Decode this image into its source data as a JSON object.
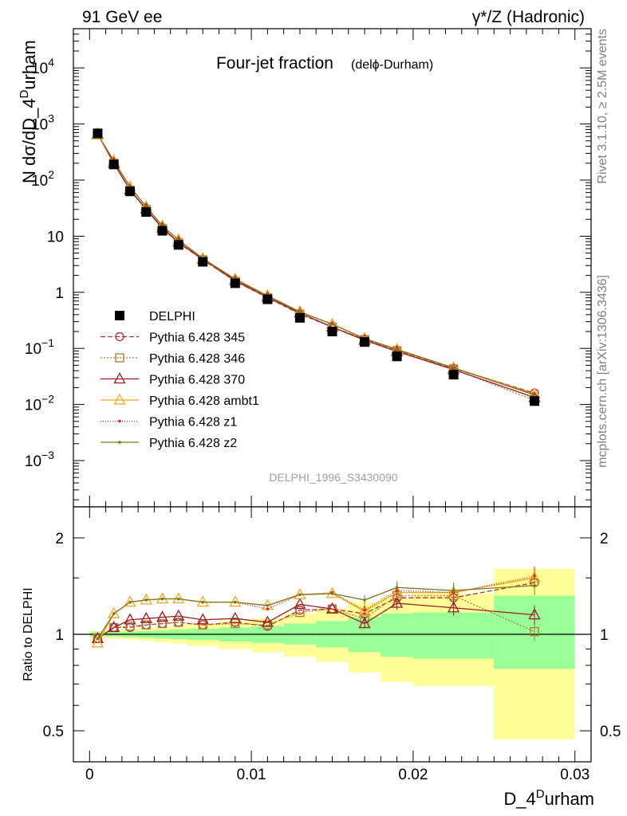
{
  "header": {
    "left": "91 GeV ee",
    "right": "γ*/Z (Hadronic)"
  },
  "side_labels": {
    "rivet": "Rivet 3.1.10, ≥ 2.5M events",
    "mcplots": "mcplots.cern.ch [arXiv:1306.3436]"
  },
  "chart_data": [
    {
      "type": "line",
      "panel": "main",
      "title": "Four-jet fraction",
      "title_sub": "(delϕ-Durham)",
      "watermark": "DELPHI_1996_S3430090",
      "xlabel": "D_4",
      "xlabel_sup": "D",
      "xlabel_rest": "urham",
      "ylabel": "N dσ/dD_4",
      "ylabel_sup": "D",
      "ylabel_rest": "urham",
      "y_scale": "log",
      "xlim": [
        -0.001,
        0.031
      ],
      "ylim": [
        0.00015,
        50000
      ],
      "y_ticks": [
        {
          "value": 10000,
          "base": "10",
          "exp": "4"
        },
        {
          "value": 1000,
          "base": "10",
          "exp": "3"
        },
        {
          "value": 100,
          "base": "10",
          "exp": "2"
        },
        {
          "value": 10,
          "base": "10",
          "exp": ""
        },
        {
          "value": 1,
          "base": "1",
          "exp": ""
        },
        {
          "value": 0.1,
          "base": "10",
          "exp": "−1"
        },
        {
          "value": 0.01,
          "base": "10",
          "exp": "−2"
        },
        {
          "value": 0.001,
          "base": "10",
          "exp": "−3"
        }
      ],
      "x": [
        0.0005,
        0.0015,
        0.0025,
        0.0035,
        0.0045,
        0.0055,
        0.007,
        0.009,
        0.011,
        0.013,
        0.015,
        0.017,
        0.019,
        0.0225,
        0.0275
      ],
      "series": [
        {
          "name": "DELPHI",
          "color": "#000000",
          "marker": "square",
          "dash": "none",
          "values": [
            680,
            190,
            63,
            27,
            12.5,
            7,
            3.5,
            1.45,
            0.75,
            0.35,
            0.2,
            0.13,
            0.072,
            0.034,
            0.0115
          ]
        },
        {
          "name": "Pythia 6.428 345",
          "color": "#b83030",
          "marker": "circle",
          "dash": "6,3",
          "values": [
            660,
            200,
            66,
            30,
            13.8,
            7.6,
            3.8,
            1.58,
            0.8,
            0.41,
            0.24,
            0.145,
            0.093,
            0.044,
            0.016
          ]
        },
        {
          "name": "Pythia 6.428 346",
          "color": "#b07a30",
          "marker": "square-open",
          "dash": "2,2",
          "values": [
            660,
            200,
            66,
            30,
            13.7,
            7.6,
            3.8,
            1.57,
            0.8,
            0.41,
            0.24,
            0.143,
            0.091,
            0.043,
            0.0118
          ]
        },
        {
          "name": "Pythia 6.428 370",
          "color": "#9a1c22",
          "marker": "triangle-open",
          "dash": "none",
          "values": [
            660,
            200,
            67,
            30.5,
            14,
            7.8,
            3.9,
            1.63,
            0.82,
            0.43,
            0.24,
            0.14,
            0.088,
            0.042,
            0.0133
          ]
        },
        {
          "name": "Pythia 6.428 ambt1",
          "color": "#f0a820",
          "marker": "triangle-open",
          "dash": "none",
          "values": [
            640,
            220,
            76,
            33.5,
            15.2,
            8.6,
            4.0,
            1.72,
            0.87,
            0.45,
            0.27,
            0.15,
            0.096,
            0.045,
            0.0155
          ]
        },
        {
          "name": "Pythia 6.428 z1",
          "color": "#e02020",
          "marker": "dot",
          "dash": "1,2",
          "values": [
            660,
            220,
            76,
            33.5,
            15.2,
            8.6,
            4.0,
            1.72,
            0.87,
            0.45,
            0.27,
            0.15,
            0.096,
            0.045,
            0.0155
          ]
        },
        {
          "name": "Pythia 6.428 z2",
          "color": "#7a7a18",
          "marker": "dot",
          "dash": "none",
          "values": [
            660,
            220,
            76,
            33.5,
            15.2,
            8.6,
            4.0,
            1.72,
            0.87,
            0.45,
            0.27,
            0.15,
            0.096,
            0.045,
            0.0148
          ]
        }
      ],
      "legend_position": "middle-left"
    },
    {
      "type": "line",
      "panel": "ratio",
      "ylabel": "Ratio to DELPHI",
      "y_scale": "log",
      "xlim": [
        -0.001,
        0.031
      ],
      "ylim": [
        0.4,
        2.5
      ],
      "y_ticks": [
        {
          "value": 2,
          "label": "2"
        },
        {
          "value": 1,
          "label": "1"
        },
        {
          "value": 0.5,
          "label": "0.5"
        }
      ],
      "x_ticks": [
        {
          "value": 0,
          "label": "0"
        },
        {
          "value": 0.01,
          "label": "0.01"
        },
        {
          "value": 0.02,
          "label": "0.02"
        },
        {
          "value": 0.03,
          "label": "0.03"
        }
      ],
      "bands": [
        {
          "x0": 0.0,
          "x1": 0.001,
          "green": [
            0.985,
            1.015
          ],
          "yellow": [
            0.975,
            1.025
          ]
        },
        {
          "x0": 0.001,
          "x1": 0.002,
          "green": [
            0.985,
            1.015
          ],
          "yellow": [
            0.97,
            1.03
          ]
        },
        {
          "x0": 0.002,
          "x1": 0.003,
          "green": [
            0.98,
            1.02
          ],
          "yellow": [
            0.965,
            1.04
          ]
        },
        {
          "x0": 0.003,
          "x1": 0.004,
          "green": [
            0.975,
            1.025
          ],
          "yellow": [
            0.955,
            1.045
          ]
        },
        {
          "x0": 0.004,
          "x1": 0.005,
          "green": [
            0.97,
            1.03
          ],
          "yellow": [
            0.945,
            1.055
          ]
        },
        {
          "x0": 0.005,
          "x1": 0.006,
          "green": [
            0.965,
            1.035
          ],
          "yellow": [
            0.935,
            1.065
          ]
        },
        {
          "x0": 0.006,
          "x1": 0.008,
          "green": [
            0.96,
            1.04
          ],
          "yellow": [
            0.92,
            1.08
          ]
        },
        {
          "x0": 0.008,
          "x1": 0.01,
          "green": [
            0.95,
            1.05
          ],
          "yellow": [
            0.9,
            1.1
          ]
        },
        {
          "x0": 0.01,
          "x1": 0.012,
          "green": [
            0.94,
            1.06
          ],
          "yellow": [
            0.88,
            1.12
          ]
        },
        {
          "x0": 0.012,
          "x1": 0.014,
          "green": [
            0.93,
            1.08
          ],
          "yellow": [
            0.85,
            1.16
          ]
        },
        {
          "x0": 0.014,
          "x1": 0.016,
          "green": [
            0.91,
            1.1
          ],
          "yellow": [
            0.82,
            1.2
          ]
        },
        {
          "x0": 0.016,
          "x1": 0.018,
          "green": [
            0.88,
            1.13
          ],
          "yellow": [
            0.76,
            1.26
          ]
        },
        {
          "x0": 0.018,
          "x1": 0.02,
          "green": [
            0.85,
            1.16
          ],
          "yellow": [
            0.71,
            1.3
          ]
        },
        {
          "x0": 0.02,
          "x1": 0.025,
          "green": [
            0.84,
            1.17
          ],
          "yellow": [
            0.69,
            1.34
          ]
        },
        {
          "x0": 0.025,
          "x1": 0.03,
          "green": [
            0.78,
            1.32
          ],
          "yellow": [
            0.47,
            1.6
          ]
        }
      ],
      "x": [
        0.0005,
        0.0015,
        0.0025,
        0.0035,
        0.0045,
        0.0055,
        0.007,
        0.009,
        0.011,
        0.013,
        0.015,
        0.017,
        0.019,
        0.0225,
        0.0275
      ],
      "series": [
        {
          "name": "Pythia 6.428 345",
          "color": "#b83030",
          "marker": "circle",
          "dash": "6,3",
          "values": [
            0.97,
            1.05,
            1.05,
            1.07,
            1.08,
            1.09,
            1.07,
            1.09,
            1.06,
            1.19,
            1.2,
            1.16,
            1.3,
            1.3,
            1.45
          ]
        },
        {
          "name": "Pythia 6.428 346",
          "color": "#b07a30",
          "marker": "square-open",
          "dash": "2,2",
          "values": [
            0.97,
            1.05,
            1.06,
            1.07,
            1.08,
            1.09,
            1.07,
            1.08,
            1.07,
            1.17,
            1.2,
            1.12,
            1.32,
            1.32,
            1.02
          ]
        },
        {
          "name": "Pythia 6.428 370",
          "color": "#9a1c22",
          "marker": "triangle-open",
          "dash": "none",
          "values": [
            0.97,
            1.05,
            1.11,
            1.12,
            1.13,
            1.14,
            1.11,
            1.12,
            1.09,
            1.24,
            1.2,
            1.08,
            1.25,
            1.21,
            1.15
          ]
        },
        {
          "name": "Pythia 6.428 ambt1",
          "color": "#f0a820",
          "marker": "triangle-open",
          "dash": "none",
          "values": [
            0.94,
            1.16,
            1.26,
            1.28,
            1.29,
            1.29,
            1.26,
            1.26,
            1.23,
            1.33,
            1.34,
            1.18,
            1.35,
            1.35,
            1.5
          ]
        },
        {
          "name": "Pythia 6.428 z1",
          "color": "#e02020",
          "marker": "dot",
          "dash": "1,2",
          "values": [
            0.97,
            1.16,
            1.26,
            1.28,
            1.29,
            1.29,
            1.26,
            1.26,
            1.2,
            1.33,
            1.35,
            1.19,
            1.37,
            1.35,
            1.52
          ]
        },
        {
          "name": "Pythia 6.428 z2",
          "color": "#7a7a18",
          "marker": "dot",
          "dash": "none",
          "values": [
            0.97,
            1.16,
            1.26,
            1.28,
            1.29,
            1.29,
            1.26,
            1.26,
            1.23,
            1.33,
            1.34,
            1.28,
            1.4,
            1.37,
            1.42
          ]
        }
      ]
    }
  ]
}
